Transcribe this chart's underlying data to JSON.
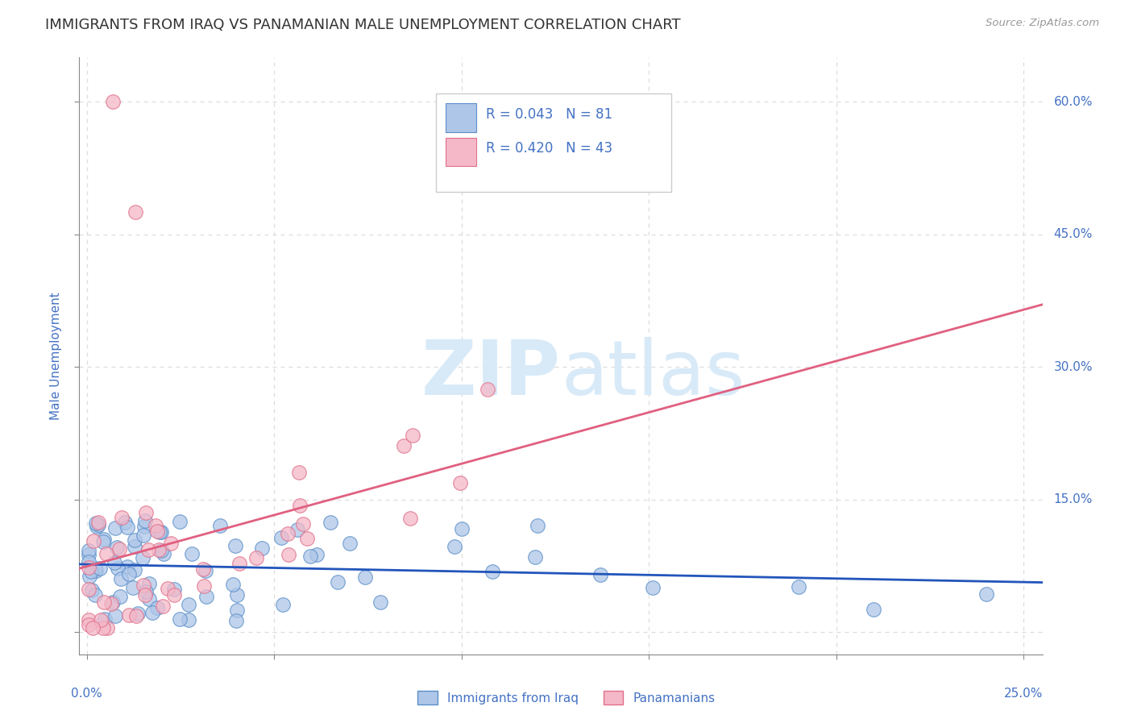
{
  "title": "IMMIGRANTS FROM IRAQ VS PANAMANIAN MALE UNEMPLOYMENT CORRELATION CHART",
  "source": "Source: ZipAtlas.com",
  "ylabel": "Male Unemployment",
  "y_ticks": [
    0.0,
    0.15,
    0.3,
    0.45,
    0.6
  ],
  "y_tick_labels_right": [
    "",
    "15.0%",
    "30.0%",
    "45.0%",
    "60.0%"
  ],
  "x_ticks": [
    0.0,
    0.05,
    0.1,
    0.15,
    0.2,
    0.25
  ],
  "xmin": -0.002,
  "xmax": 0.255,
  "ymin": -0.025,
  "ymax": 0.65,
  "legend_r1": "R = 0.043",
  "legend_n1": "N = 81",
  "legend_r2": "R = 0.420",
  "legend_n2": "N = 43",
  "series1_label": "Immigrants from Iraq",
  "series2_label": "Panamanians",
  "series1_color": "#aec6e8",
  "series2_color": "#f4b8c8",
  "series1_edge": "#5b8fc9",
  "series2_edge": "#e0708a",
  "trendline1_color": "#2255bb",
  "trendline2_color": "#e06080",
  "watermark_zip": "ZIP",
  "watermark_atlas": "atlas",
  "watermark_color": "#d8eaf8",
  "background_color": "#ffffff",
  "grid_color": "#dddddd",
  "title_color": "#333333",
  "axis_label_color": "#4472c4",
  "legend_text_color": "#4472c4",
  "axis_color": "#888888",
  "right_label_color": "#4472c4"
}
